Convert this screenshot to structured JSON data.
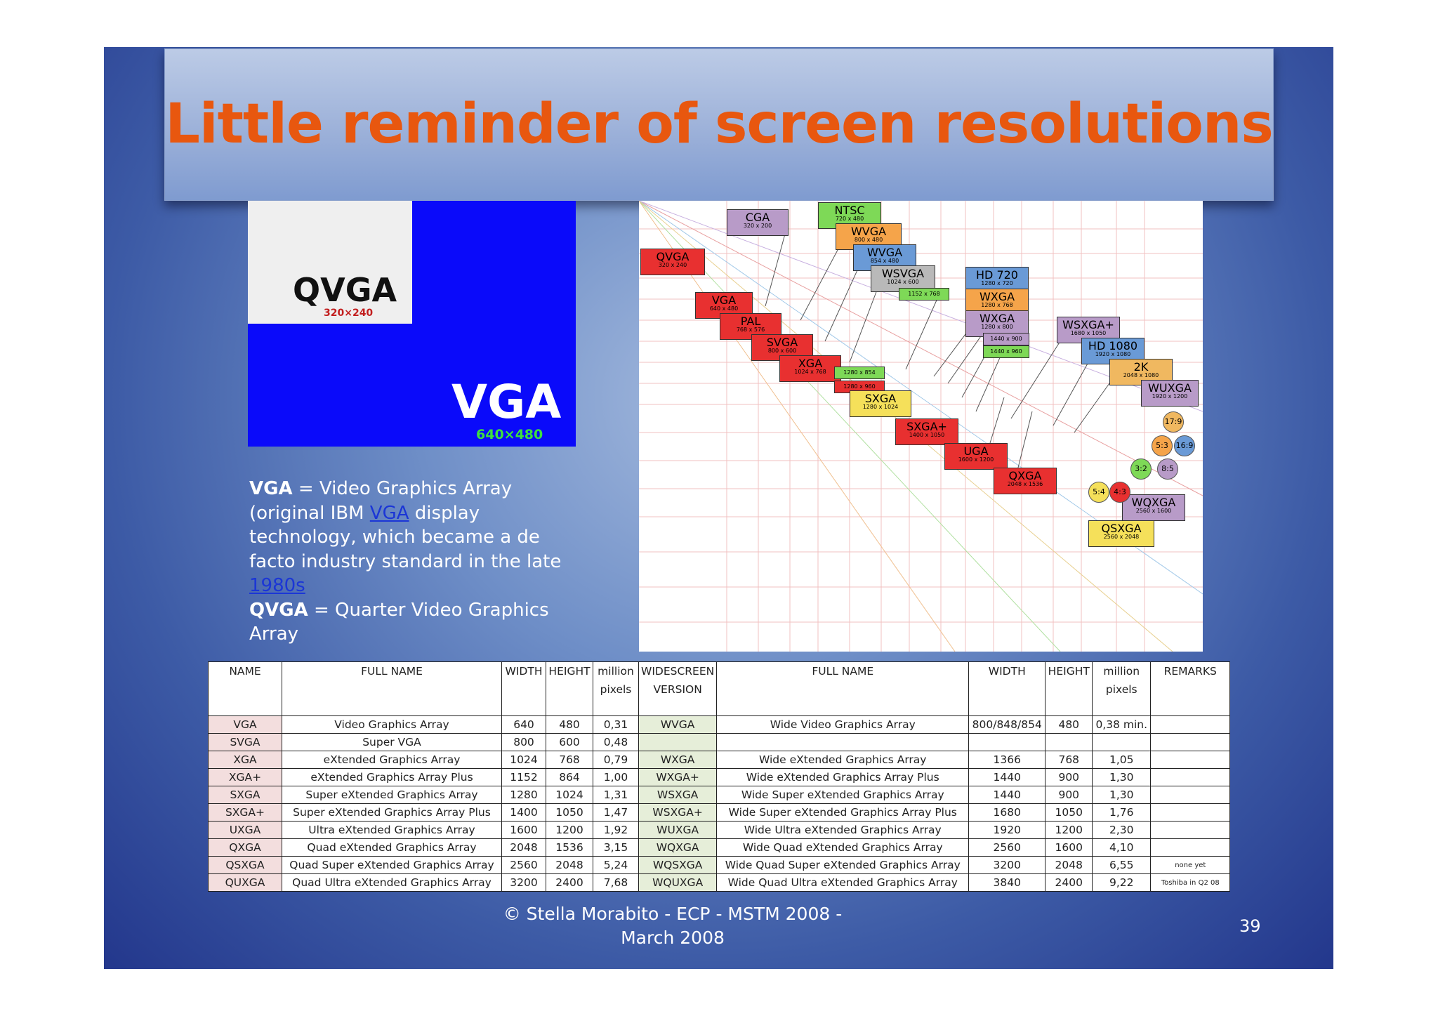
{
  "title": "Little reminder of screen resolutions",
  "image": {
    "qvga_name": "QVGA",
    "qvga_res": "320×240",
    "vga_name": "VGA",
    "vga_res": "640×480"
  },
  "description": {
    "vga_term": "VGA",
    "vga_text_1": " = Video Graphics Array (original IBM ",
    "vga_link": "VGA",
    "vga_text_2": " display technology, which became a de facto industry standard in the late ",
    "year_link": "1980s",
    "qvga_term": "QVGA",
    "qvga_text": " = Quarter Video Graphics Array"
  },
  "chart_boxes": [
    {
      "name": "CGA",
      "res": "320 x 200",
      "color": "#b89bc8"
    },
    {
      "name": "NTSC",
      "res": "720 x 480",
      "color": "#7ed957"
    },
    {
      "name": "WVGA",
      "res": "800 x 480",
      "color": "#f5a44a"
    },
    {
      "name": "QVGA",
      "res": "320 x 240",
      "color": "#e83030"
    },
    {
      "name": "WVGA",
      "res": "854 x 480",
      "color": "#6a9ad6"
    },
    {
      "name": "WSVGA",
      "res": "1024 x 600",
      "color": "#b9b9b9"
    },
    {
      "name": "HD 720",
      "res": "1280 x 720",
      "color": "#6a9ad6"
    },
    {
      "name": "",
      "res": "1152 x 768",
      "color": "#7ed957"
    },
    {
      "name": "VGA",
      "res": "640 x 480",
      "color": "#e83030"
    },
    {
      "name": "WXGA",
      "res": "1280 x 768",
      "color": "#f5a44a"
    },
    {
      "name": "PAL",
      "res": "768 x 576",
      "color": "#e83030"
    },
    {
      "name": "WXGA",
      "res": "1280 x 800",
      "color": "#b89bc8"
    },
    {
      "name": "WSXGA+",
      "res": "1680 x 1050",
      "color": "#b89bc8"
    },
    {
      "name": "",
      "res": "1440 x 900",
      "color": "#b89bc8"
    },
    {
      "name": "SVGA",
      "res": "800 x 600",
      "color": "#e83030"
    },
    {
      "name": "HD 1080",
      "res": "1920 x 1080",
      "color": "#6a9ad6"
    },
    {
      "name": "",
      "res": "1440 x 960",
      "color": "#7ed957"
    },
    {
      "name": "XGA",
      "res": "1024 x 768",
      "color": "#e83030"
    },
    {
      "name": "2K",
      "res": "2048 x 1080",
      "color": "#f0b860"
    },
    {
      "name": "",
      "res": "1280 x 854",
      "color": "#7ed957"
    },
    {
      "name": "",
      "res": "1280 x 960",
      "color": "#e83030"
    },
    {
      "name": "WUXGA",
      "res": "1920 x 1200",
      "color": "#b89bc8"
    },
    {
      "name": "SXGA",
      "res": "1280 x 1024",
      "color": "#f5e05a"
    },
    {
      "name": "SXGA+",
      "res": "1400 x 1050",
      "color": "#e83030"
    },
    {
      "name": "UGA",
      "res": "1600 x 1200",
      "color": "#e83030"
    },
    {
      "name": "QXGA",
      "res": "2048 x 1536",
      "color": "#e83030"
    },
    {
      "name": "WQXGA",
      "res": "2560 x 1600",
      "color": "#b89bc8"
    },
    {
      "name": "QSXGA",
      "res": "2560 x 2048",
      "color": "#f5e05a"
    }
  ],
  "chart_ratios": [
    {
      "label": "17:9",
      "color": "#f0b860"
    },
    {
      "label": "5:3",
      "color": "#f5a44a"
    },
    {
      "label": "16:9",
      "color": "#6a9ad6"
    },
    {
      "label": "3:2",
      "color": "#7ed957"
    },
    {
      "label": "8:5",
      "color": "#b89bc8"
    },
    {
      "label": "5:4",
      "color": "#f5e05a"
    },
    {
      "label": "4:3",
      "color": "#e83030"
    }
  ],
  "table": {
    "headers": {
      "name": "NAME",
      "full_name": "FULL NAME",
      "width": "WIDTH",
      "height": "HEIGHT",
      "mpix_1": "million",
      "mpix_2": "pixels",
      "wide_1": "WIDESCREEN",
      "wide_2": "VERSION",
      "wfull_name": "FULL NAME",
      "wwidth": "WIDTH",
      "wheight": "HEIGHT",
      "wmpix_1": "million",
      "wmpix_2": "pixels",
      "remarks": "REMARKS"
    },
    "rows": [
      [
        "VGA",
        "Video Graphics Array",
        "640",
        "480",
        "0,31",
        "WVGA",
        "Wide Video Graphics Array",
        "800/848/854",
        "480",
        "0,38 min.",
        ""
      ],
      [
        "SVGA",
        "Super VGA",
        "800",
        "600",
        "0,48",
        "",
        "",
        "",
        "",
        "",
        ""
      ],
      [
        "XGA",
        "eXtended Graphics Array",
        "1024",
        "768",
        "0,79",
        "WXGA",
        "Wide eXtended Graphics Array",
        "1366",
        "768",
        "1,05",
        ""
      ],
      [
        "XGA+",
        "eXtended Graphics Array Plus",
        "1152",
        "864",
        "1,00",
        "WXGA+",
        "Wide eXtended Graphics Array Plus",
        "1440",
        "900",
        "1,30",
        ""
      ],
      [
        "SXGA",
        "Super eXtended Graphics Array",
        "1280",
        "1024",
        "1,31",
        "WSXGA",
        "Wide Super eXtended Graphics Array",
        "1440",
        "900",
        "1,30",
        ""
      ],
      [
        "SXGA+",
        "Super eXtended Graphics Array Plus",
        "1400",
        "1050",
        "1,47",
        "WSXGA+",
        "Wide Super eXtended Graphics Array Plus",
        "1680",
        "1050",
        "1,76",
        ""
      ],
      [
        "UXGA",
        "Ultra eXtended Graphics Array",
        "1600",
        "1200",
        "1,92",
        "WUXGA",
        "Wide Ultra eXtended Graphics Array",
        "1920",
        "1200",
        "2,30",
        ""
      ],
      [
        "QXGA",
        "Quad eXtended Graphics Array",
        "2048",
        "1536",
        "3,15",
        "WQXGA",
        "Wide Quad eXtended Graphics Array",
        "2560",
        "1600",
        "4,10",
        ""
      ],
      [
        "QSXGA",
        "Quad Super eXtended Graphics Array",
        "2560",
        "2048",
        "5,24",
        "WQSXGA",
        "Wide Quad Super eXtended Graphics Array",
        "3200",
        "2048",
        "6,55",
        "none yet"
      ],
      [
        "QUXGA",
        "Quad Ultra eXtended Graphics Array",
        "3200",
        "2400",
        "7,68",
        "WQUXGA",
        "Wide Quad Ultra eXtended Graphics Array",
        "3840",
        "2400",
        "9,22",
        "Toshiba in Q2 08"
      ]
    ]
  },
  "footer": {
    "line1": "© Stella Morabito - ECP - MSTM 2008 -",
    "line2": "March 2008"
  },
  "page_number": "39"
}
